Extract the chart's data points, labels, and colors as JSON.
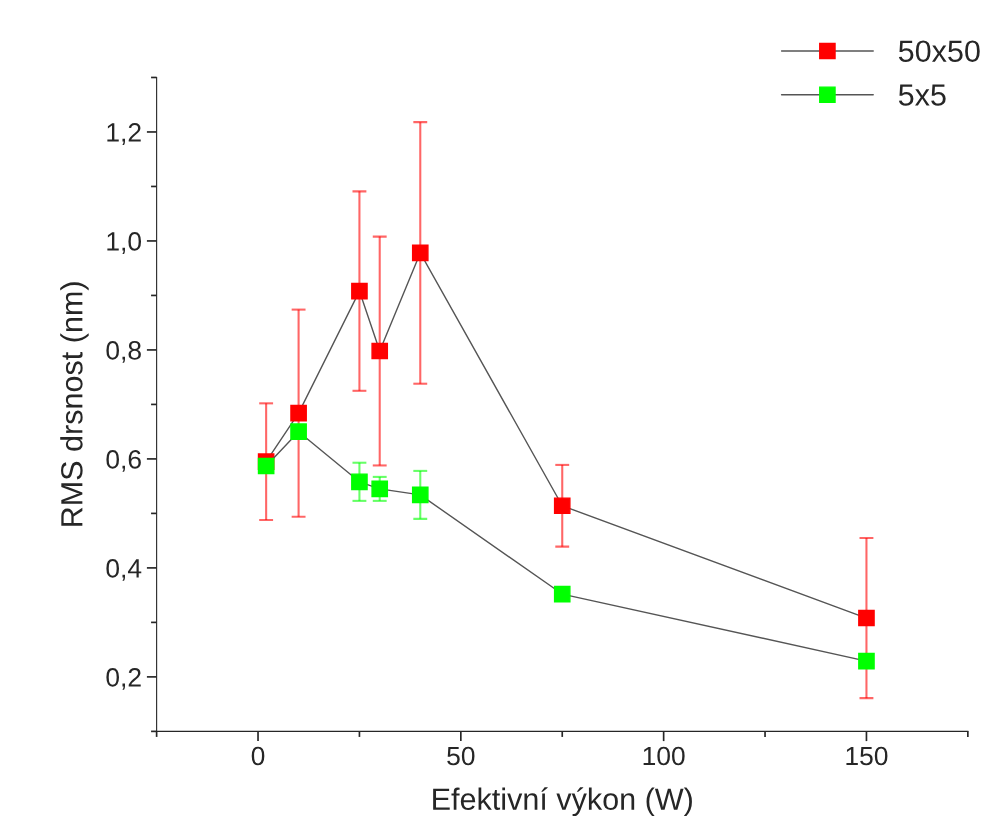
{
  "chart_data": {
    "type": "line",
    "xlabel": "Efektivní výkon (W)",
    "ylabel": "RMS drsnost (nm)",
    "xlim": [
      -25,
      175
    ],
    "xticks": [
      0,
      50,
      100,
      150
    ],
    "ylim": [
      0.1,
      1.3
    ],
    "yticks": [
      {
        "value": 0.2,
        "label": "0,2"
      },
      {
        "value": 0.4,
        "label": "0,4"
      },
      {
        "value": 0.6,
        "label": "0,6"
      },
      {
        "value": 0.8,
        "label": "0,8"
      },
      {
        "value": 1.0,
        "label": "1,0"
      },
      {
        "value": 1.2,
        "label": "1,2"
      }
    ],
    "marker": "square",
    "line_style": "solid",
    "grid": false,
    "legend": "top right",
    "series": [
      {
        "name": "50x50",
        "color": "#ff0000",
        "x": [
          2,
          10,
          25,
          30,
          40,
          75,
          150
        ],
        "values": [
          0.595,
          0.684,
          0.908,
          0.798,
          0.978,
          0.514,
          0.308
        ],
        "errors": [
          0.107,
          0.19,
          0.183,
          0.21,
          0.24,
          0.075,
          0.147
        ]
      },
      {
        "name": "5x5",
        "color": "#00ff00",
        "x": [
          2,
          10,
          25,
          30,
          40,
          75,
          150
        ],
        "values": [
          0.587,
          0.65,
          0.558,
          0.545,
          0.534,
          0.352,
          0.229
        ],
        "errors": [
          0.01,
          null,
          0.035,
          0.022,
          0.044,
          null,
          null
        ]
      }
    ]
  }
}
